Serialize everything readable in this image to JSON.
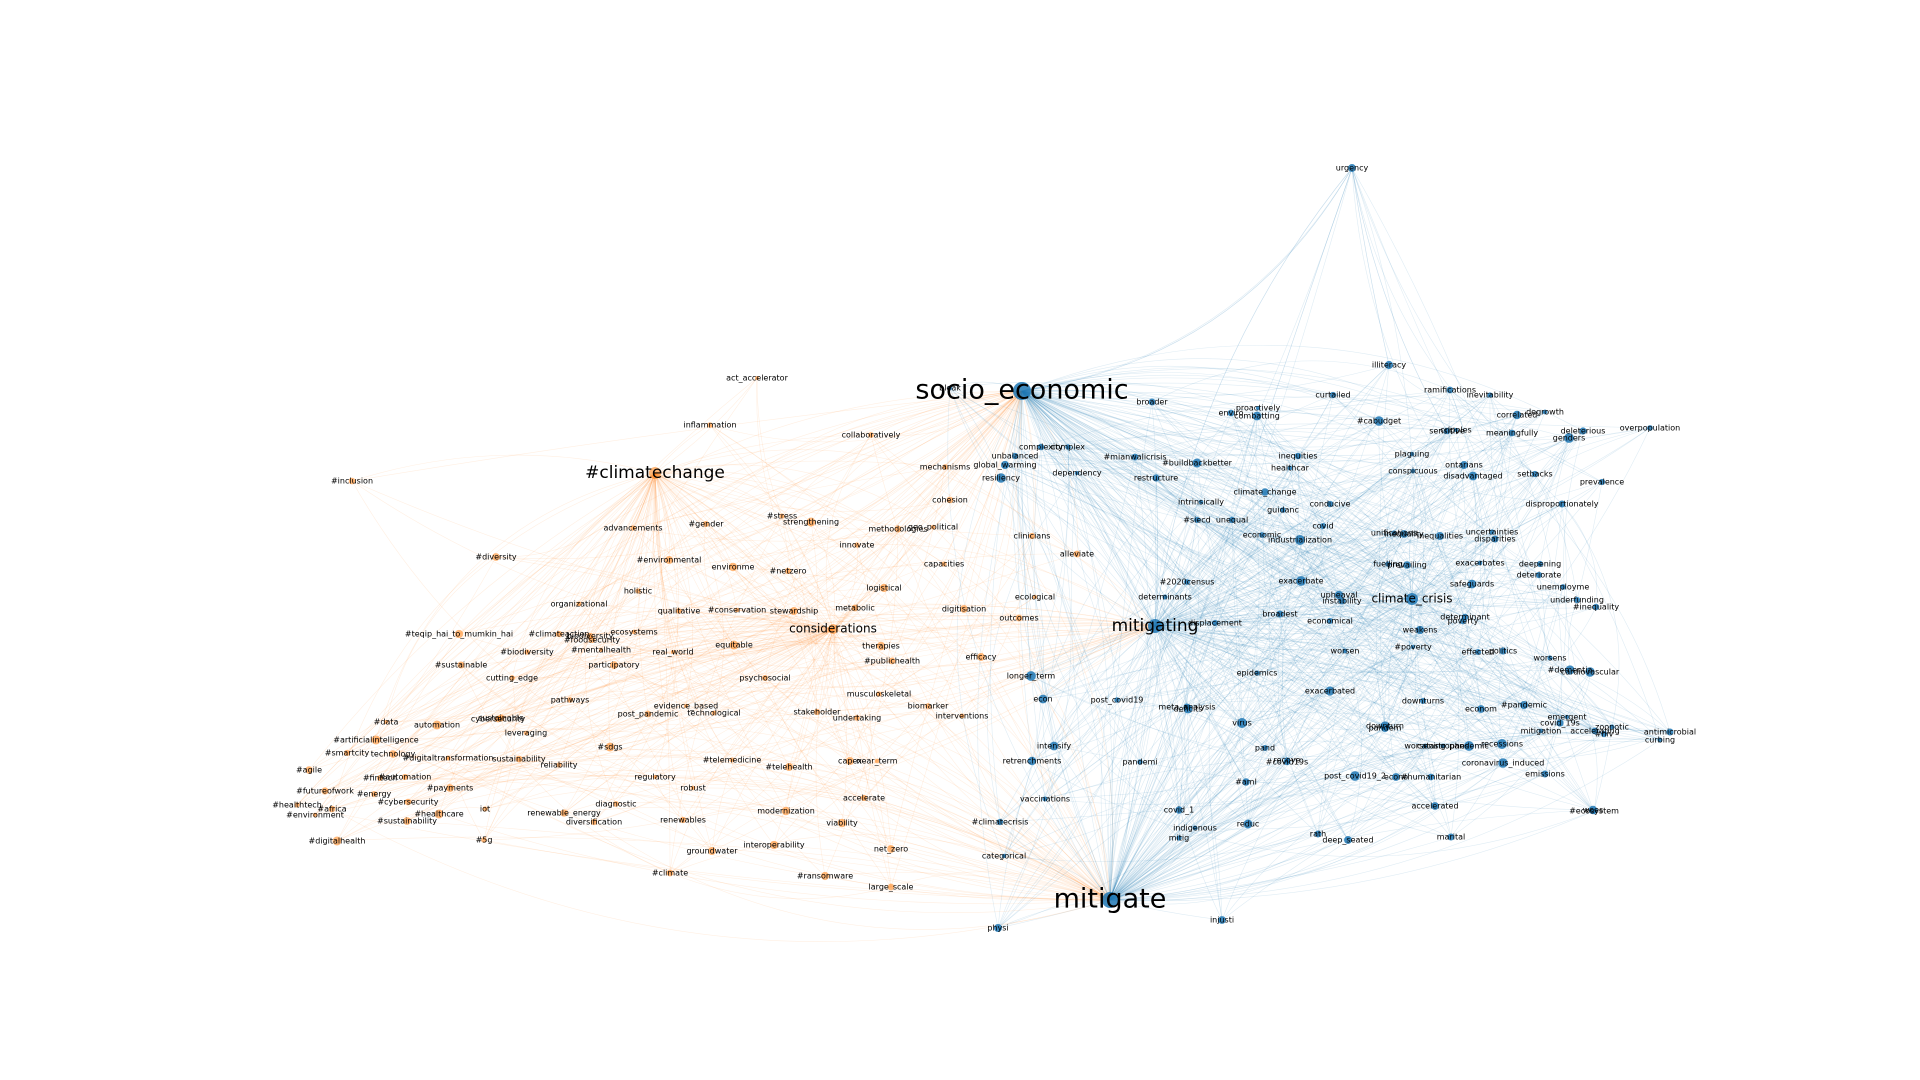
{
  "colors": {
    "cluster_orange": "#ff7f0e",
    "cluster_blue": "#1f77b4",
    "background": "#ffffff"
  },
  "graph": {
    "hubs": [
      {
        "label": "socio_economic",
        "group": "blue"
      },
      {
        "label": "mitigating",
        "group": "blue"
      },
      {
        "label": "mitigate",
        "group": "blue"
      },
      {
        "label": "#climatechange",
        "group": "orange"
      },
      {
        "label": "considerations",
        "group": "orange"
      },
      {
        "label": "climate_crisis",
        "group": "blue"
      }
    ],
    "orange_terms": [
      "act_accelerator",
      "#inclusion",
      "#diversity",
      "advancements",
      "#gender",
      "#stress",
      "strengthening",
      "cohesion",
      "methodologies",
      "innovate",
      "geo_political",
      "#environmental",
      "environme",
      "#netzero",
      "capacities",
      "holistic",
      "organizational",
      "qualitative",
      "#conservation",
      "stewardship",
      "metabolic",
      "logistical",
      "digitisation",
      "ecological",
      "outcomes",
      "ecosystems",
      "#teqip_hai_to_mumkin_hai",
      "#climateaction",
      "#foodsecurity",
      "biodiversity",
      "#biodiversity",
      "#mentalhealth",
      "real_world",
      "equitable",
      "therapies",
      "efficacy",
      "#publichealth",
      "participatory",
      "#sustainable",
      "cutting_edge",
      "psychosocial",
      "musculoskeletal",
      "biomarker",
      "sustainable",
      "pathways",
      "evidence_based",
      "post_pandemic",
      "technological",
      "stakeholder",
      "undertaking",
      "interventions",
      "#data",
      "automation",
      "cybersecurity",
      "leveraging",
      "#artificialintelligence",
      "#smartcity",
      "technology",
      "#digitaltransformation",
      "sustainability",
      "#sdgs",
      "reliability",
      "#agile",
      "#fintech",
      "#automation",
      "#payments",
      "#telemedicine",
      "#telehealth",
      "capex",
      "near_term",
      "regulatory",
      "robust",
      "#futureofwork",
      "#energy",
      "#healthtech",
      "#africa",
      "#cybersecurity",
      "#environment",
      "#healthcare",
      "diagnostic",
      "#sustainability",
      "iot",
      "renewable_energy",
      "modernization",
      "renewables",
      "accelerate",
      "viability",
      "diversification",
      "#digitalhealth",
      "#5g",
      "groundwater",
      "interoperability",
      "net_zero",
      "#climate",
      "#ransomware",
      "large_scale",
      "inflammation",
      "collaboratively",
      "mechanisms",
      "clinicians",
      "alleviate"
    ],
    "blue_terms": [
      "urgency",
      "bleak",
      "broader",
      "enviro",
      "proactively",
      "illiteracy",
      "curtailed",
      "ramifications",
      "#cabudget",
      "degrowth",
      "sensitive",
      "overpopulation",
      "complexity",
      "complex",
      "unbalanced",
      "global_warming",
      "resiliency",
      "dependency",
      "#mianwalicrisis",
      "#buildbackbetter",
      "restructure",
      "healthcar",
      "inequities",
      "conspicuous",
      "disadvantaged",
      "conducive",
      "intrinsically",
      "climate_change",
      "#siecd",
      "guidanc",
      "unequal",
      "covid",
      "inequality",
      "uncertainties",
      "economic",
      "industrialization",
      "unifications",
      "inequalities",
      "disparities",
      "safeguards",
      "exacerbates",
      "deepening",
      "fuelling",
      "#2020census",
      "determinants",
      "exacerbate",
      "upheaval",
      "prevailing",
      "instability",
      "broadest",
      "deteriorate",
      "unemployme",
      "underfunding",
      "#inequality",
      "determinant",
      "economical",
      "displacement",
      "worsen",
      "weakens",
      "poverty",
      "#poverty",
      "effected",
      "politics",
      "worsens",
      "#dementia",
      "cardiovascular",
      "longer_term",
      "econ",
      "post_covid19",
      "meta_analysis",
      "epidemics",
      "exacerbated",
      "deficits",
      "virus",
      "downturns",
      "econom",
      "#pandemic",
      "downturn",
      "worsening",
      "pandem",
      "recessions",
      "pandemic",
      "catastrophes",
      "#hiv",
      "emergent",
      "covid_19s",
      "zoonotic",
      "antimicrobial",
      "curbing",
      "intensify",
      "pandemi",
      "recove",
      "pand",
      "retrenchments",
      "#covid19s",
      "post_covid19_2",
      "#aml",
      "#humanitarian",
      "econo",
      "coronavirus_induced",
      "emissions",
      "accelerating",
      "mitigation",
      "woes",
      "vaccinations",
      "covid_1",
      "accelerated",
      "#ecosystem",
      "#climatecrisis",
      "mitig",
      "reduc",
      "rath",
      "deep_seated",
      "marital",
      "categorical",
      "injusti",
      "physi",
      "indigenous",
      "combatting",
      "inevitability",
      "cripples",
      "meaningfully",
      "correlated",
      "genders",
      "deleterious",
      "plaguing",
      "ontarians",
      "setbacks",
      "disproportionately",
      "prevalence"
    ]
  }
}
